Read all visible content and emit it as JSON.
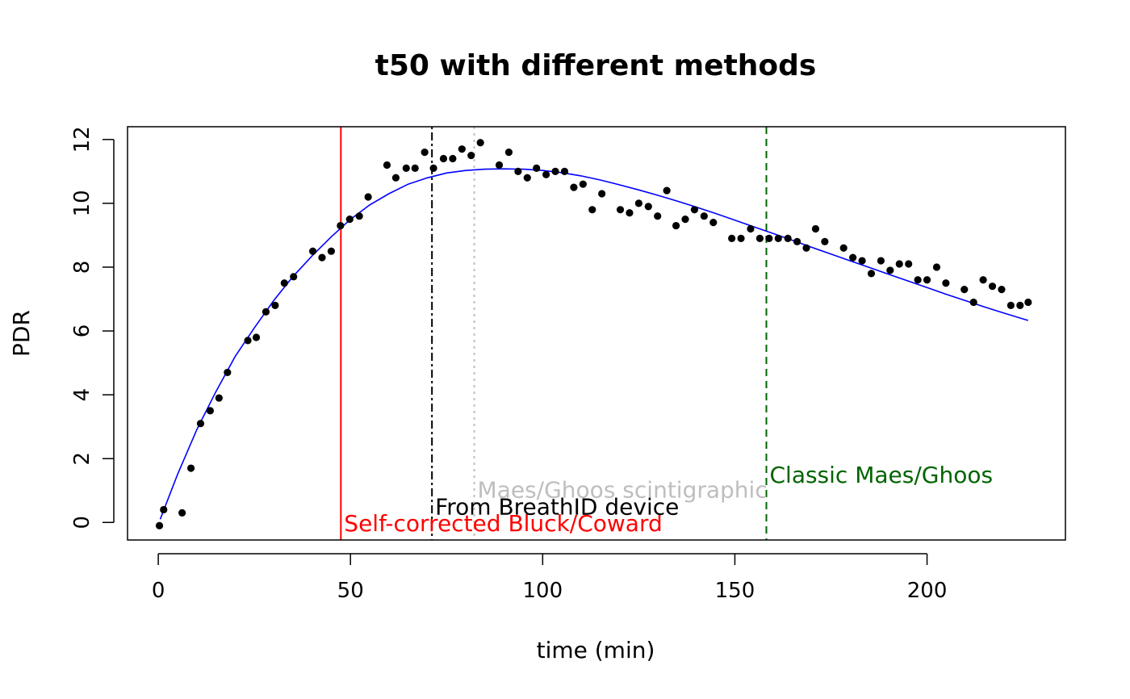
{
  "chart_data": {
    "type": "scatter",
    "title": "t50 with different methods",
    "xlabel": "time (min)",
    "ylabel": "PDR",
    "xlim": [
      -8,
      236
    ],
    "ylim": [
      -0.55,
      12.4
    ],
    "xticks": [
      0,
      50,
      100,
      150,
      200
    ],
    "yticks": [
      0,
      2,
      4,
      6,
      8,
      10,
      12
    ],
    "grid": false,
    "points": {
      "x": [
        0.3,
        1.4,
        6.2,
        8.5,
        11,
        13.5,
        15.8,
        18,
        23.3,
        25.5,
        28,
        30.4,
        32.8,
        35.2,
        40.2,
        42.6,
        45,
        47.4,
        49.8,
        52.3,
        54.6,
        59.5,
        61.8,
        64.5,
        66.8,
        69.3,
        71.6,
        74.2,
        76.6,
        79,
        81.4,
        83.8,
        88.7,
        91.2,
        93.6,
        96,
        98.4,
        100.9,
        103.3,
        105.7,
        108.1,
        110.5,
        112.9,
        115.4,
        120.2,
        122.6,
        125,
        127.5,
        129.9,
        132.3,
        134.7,
        137.1,
        139.5,
        142,
        144.4,
        149.2,
        151.6,
        154.1,
        156.5,
        158.9,
        161.3,
        163.8,
        166.2,
        168.6,
        171,
        173.4,
        178.3,
        180.7,
        183.1,
        185.5,
        188,
        190.4,
        192.8,
        195.2,
        197.6,
        200,
        202.5,
        204.9,
        209.7,
        212.1,
        214.6,
        217,
        219.4,
        221.8,
        224.2,
        226.3
      ],
      "y": [
        -0.1,
        0.4,
        0.3,
        1.7,
        3.1,
        3.5,
        3.9,
        4.7,
        5.7,
        5.8,
        6.6,
        6.8,
        7.5,
        7.7,
        8.5,
        8.3,
        8.5,
        9.3,
        9.5,
        9.6,
        10.2,
        11.2,
        10.8,
        11.1,
        11.1,
        11.6,
        11.1,
        11.4,
        11.4,
        11.7,
        11.5,
        11.9,
        11.2,
        11.6,
        11.0,
        10.8,
        11.1,
        10.9,
        11.0,
        11.0,
        10.5,
        10.6,
        9.8,
        10.3,
        9.8,
        9.7,
        10.0,
        9.9,
        9.6,
        10.4,
        9.3,
        9.5,
        9.8,
        9.6,
        9.4,
        8.9,
        8.9,
        9.2,
        8.9,
        8.9,
        8.9,
        8.9,
        8.8,
        8.6,
        9.2,
        8.8,
        8.6,
        8.3,
        8.2,
        7.8,
        8.2,
        7.9,
        8.1,
        8.1,
        7.6,
        7.6,
        8.0,
        7.5,
        7.3,
        6.9,
        7.6,
        7.4,
        7.3,
        6.8,
        6.8,
        6.9
      ],
      "color": "#000000"
    },
    "fit_curve": {
      "x": [
        0.5,
        5,
        10,
        15,
        20,
        25,
        30,
        35,
        40,
        45,
        50,
        55,
        60,
        65,
        70,
        75,
        80,
        85,
        90,
        95,
        100,
        105,
        110,
        115,
        120,
        125,
        130,
        135,
        140,
        145,
        150,
        155,
        160,
        165,
        170,
        175,
        180,
        185,
        190,
        195,
        200,
        205,
        210,
        215,
        220,
        226.3
      ],
      "y": [
        0.1,
        1.5,
        2.9,
        4.1,
        5.2,
        6.1,
        6.95,
        7.7,
        8.35,
        8.95,
        9.5,
        9.95,
        10.3,
        10.6,
        10.8,
        10.95,
        11.03,
        11.07,
        11.08,
        11.07,
        11.03,
        10.96,
        10.86,
        10.73,
        10.58,
        10.42,
        10.25,
        10.07,
        9.88,
        9.68,
        9.47,
        9.26,
        9.05,
        8.84,
        8.62,
        8.41,
        8.2,
        7.99,
        7.78,
        7.57,
        7.36,
        7.15,
        6.95,
        6.75,
        6.56,
        6.33
      ],
      "color": "#0000ff"
    },
    "vlines": [
      {
        "x": 47.5,
        "label": "Self-corrected Bluck/Coward",
        "color": "#ff0000",
        "style": "solid",
        "label_y": -0.02
      },
      {
        "x": 71.2,
        "label": "From BreathID device",
        "color": "#000000",
        "style": "dotdash",
        "label_y": 0.5
      },
      {
        "x": 82.2,
        "label": "Maes/Ghoos scintigraphic",
        "color": "#bebebe",
        "style": "dotted",
        "label_y": 1.03
      },
      {
        "x": 158.2,
        "label": "Classic Maes/Ghoos",
        "color": "#006400",
        "style": "dashed",
        "label_y": 1.5
      }
    ]
  }
}
